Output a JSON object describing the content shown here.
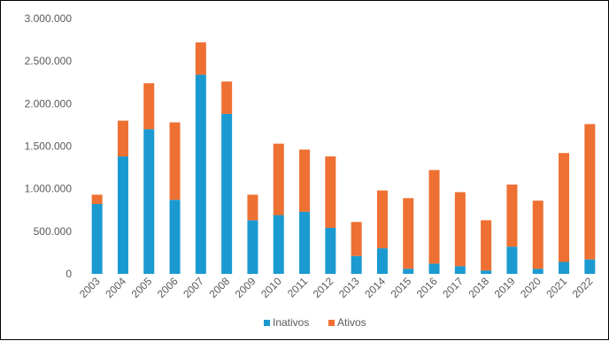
{
  "chart_data": {
    "type": "bar",
    "stacked": true,
    "categories": [
      "2003",
      "2004",
      "2005",
      "2006",
      "2007",
      "2008",
      "2009",
      "2010",
      "2011",
      "2012",
      "2013",
      "2014",
      "2015",
      "2016",
      "2017",
      "2018",
      "2019",
      "2020",
      "2021",
      "2022"
    ],
    "series": [
      {
        "name": "Inativos",
        "color": "#1a9ad0",
        "values": [
          820000,
          1380000,
          1700000,
          870000,
          2340000,
          1880000,
          630000,
          690000,
          730000,
          540000,
          210000,
          300000,
          60000,
          120000,
          90000,
          40000,
          320000,
          60000,
          140000,
          170000
        ]
      },
      {
        "name": "Ativos",
        "color": "#ee7032",
        "values": [
          110000,
          420000,
          540000,
          910000,
          380000,
          380000,
          300000,
          840000,
          730000,
          840000,
          400000,
          680000,
          830000,
          1100000,
          870000,
          590000,
          730000,
          800000,
          1280000,
          1590000
        ]
      }
    ],
    "y_ticks": [
      "0",
      "500.000",
      "1.000.000",
      "1.500.000",
      "2.000.000",
      "2.500.000",
      "3.000.000"
    ],
    "ylim": [
      0,
      3000000
    ],
    "grid": false,
    "legend": "bottom"
  }
}
